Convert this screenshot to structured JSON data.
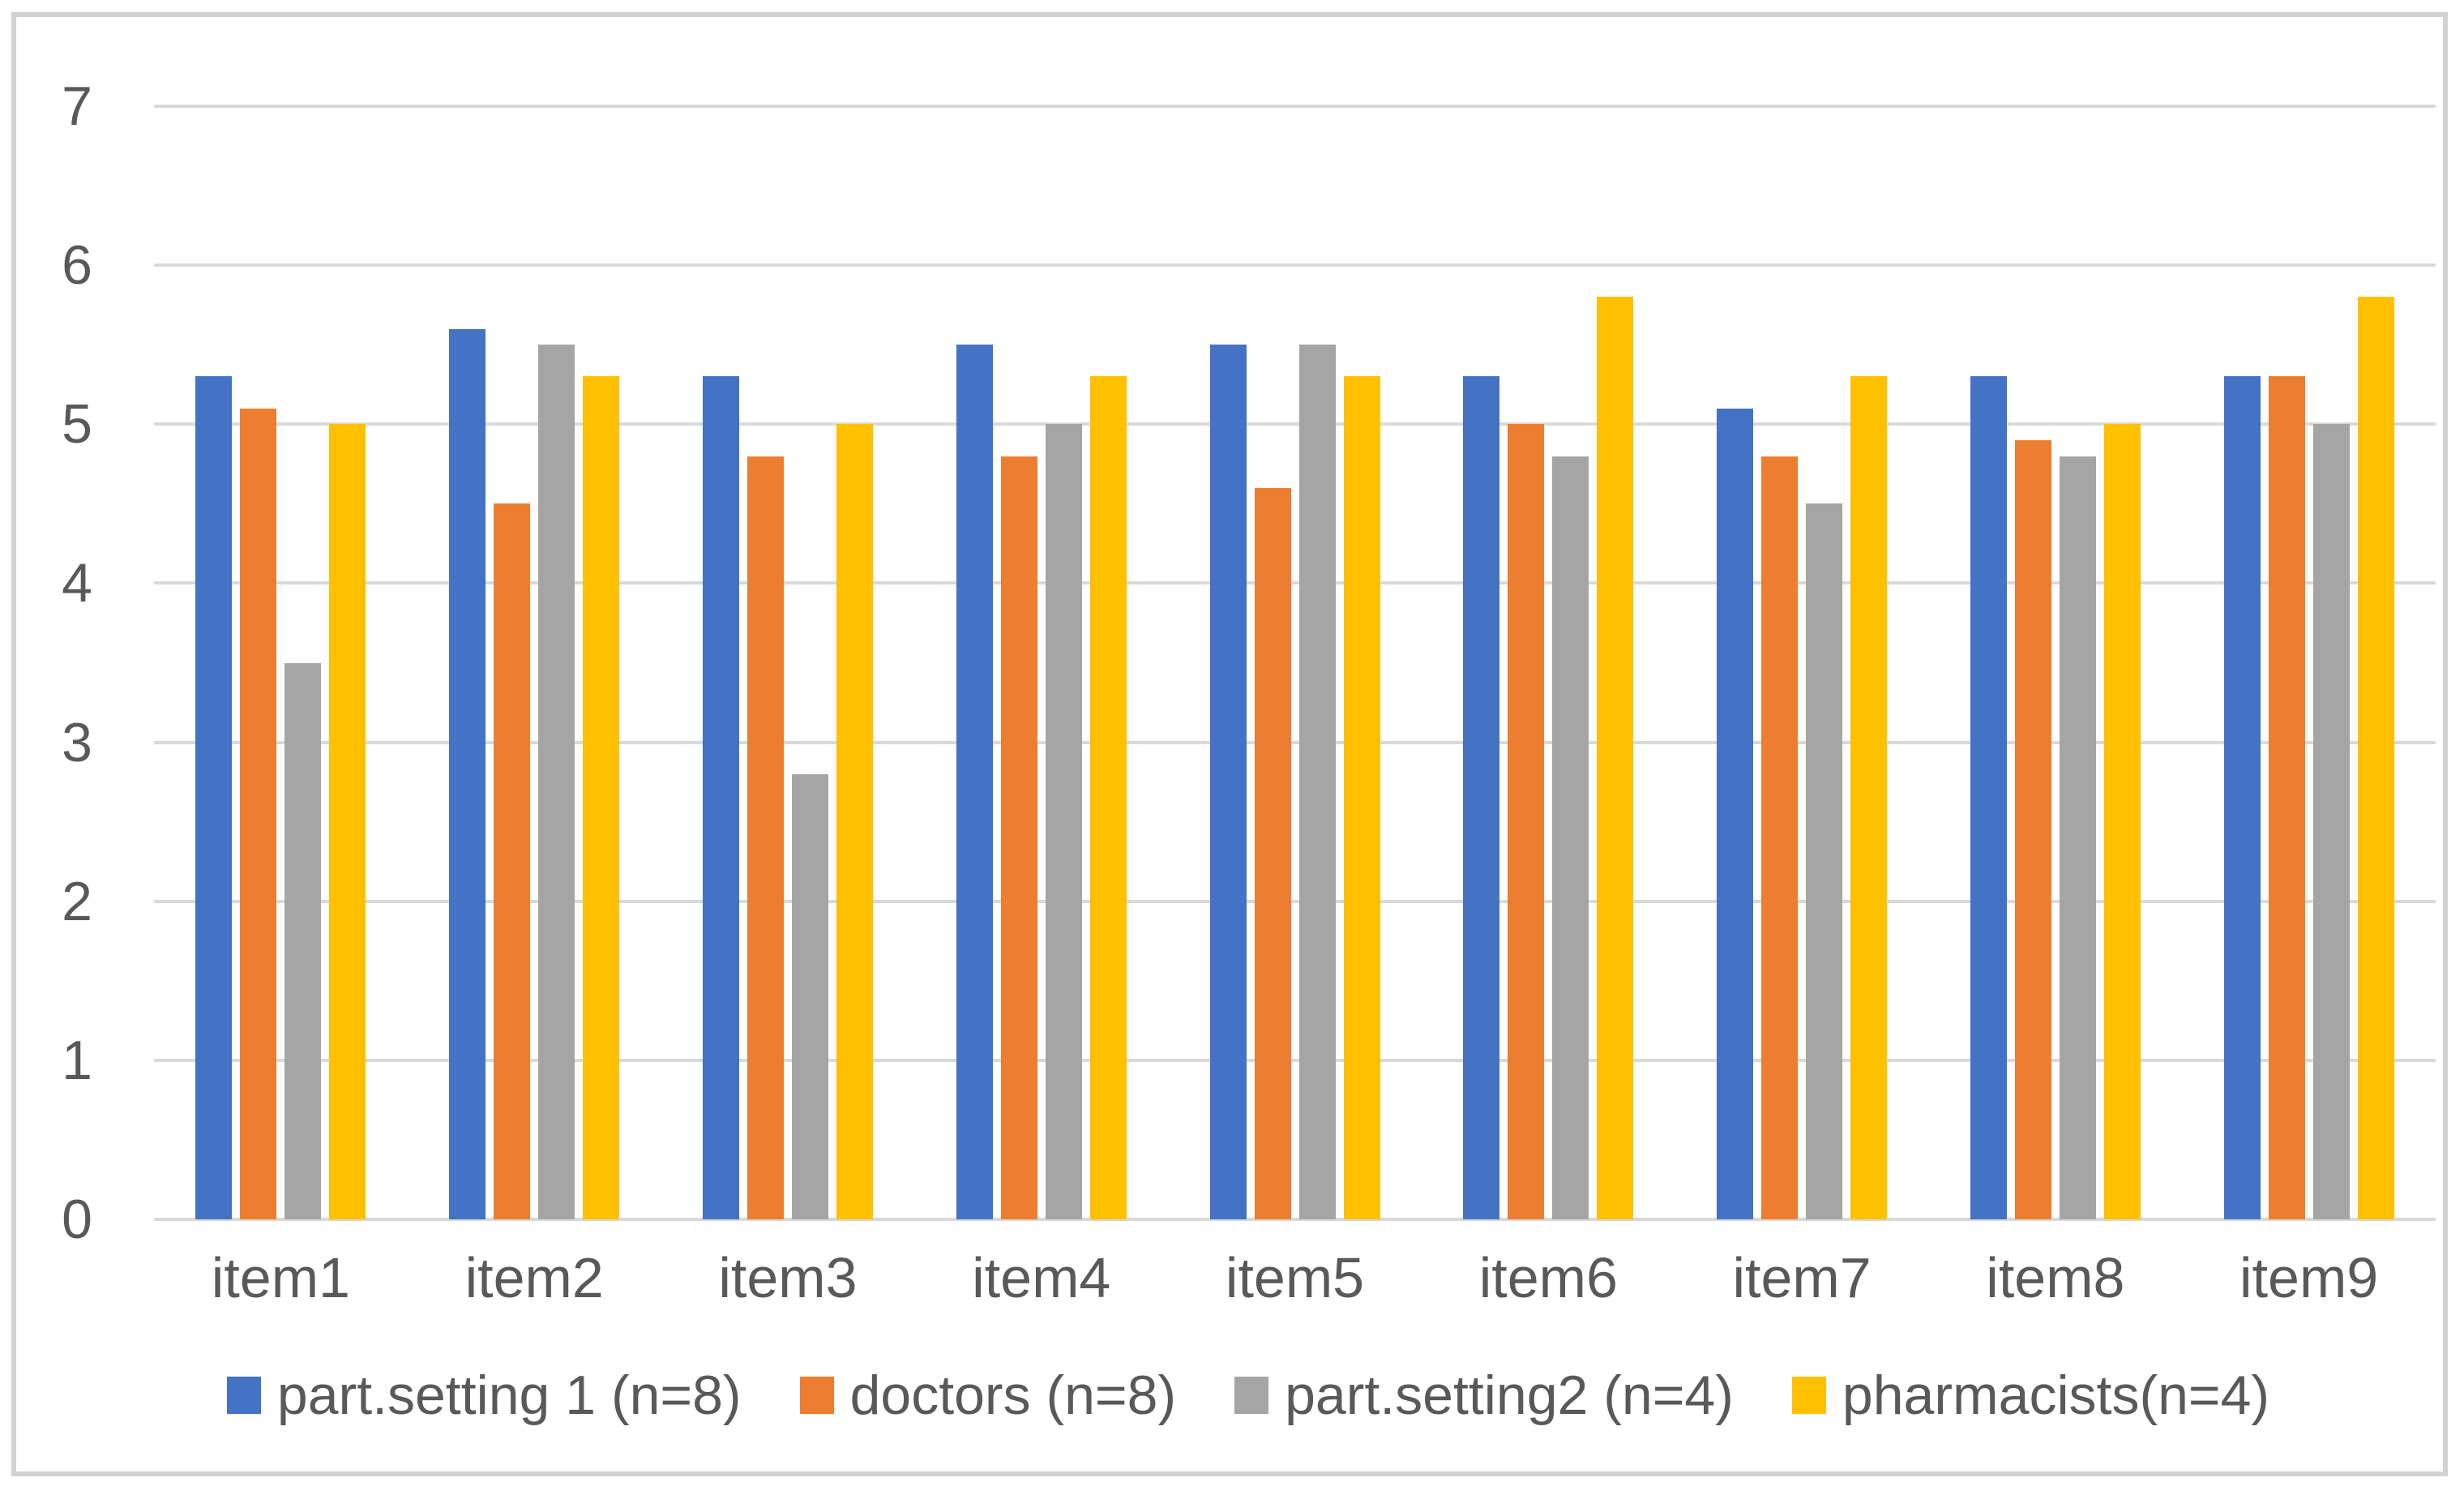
{
  "chart_data": {
    "type": "bar",
    "title": "",
    "xlabel": "",
    "ylabel": "",
    "categories": [
      "item1",
      "item2",
      "item3",
      "item4",
      "item5",
      "item6",
      "item7",
      "item8",
      "item9"
    ],
    "series": [
      {
        "name": "part.setting 1 (n=8)",
        "color": "#4472c4",
        "values": [
          5.3,
          5.6,
          5.3,
          5.5,
          5.5,
          5.3,
          5.1,
          5.3,
          5.3
        ]
      },
      {
        "name": "doctors (n=8)",
        "color": "#ed7d31",
        "values": [
          5.1,
          4.5,
          4.8,
          4.8,
          4.6,
          5.0,
          4.8,
          4.9,
          5.3
        ]
      },
      {
        "name": "part.setting2 (n=4)",
        "color": "#a5a5a5",
        "values": [
          3.5,
          5.5,
          2.8,
          5.0,
          5.5,
          4.8,
          4.5,
          4.8,
          5.0
        ]
      },
      {
        "name": "pharmacists(n=4)",
        "color": "#ffc000",
        "values": [
          5.0,
          5.3,
          5.0,
          5.3,
          5.3,
          5.8,
          5.3,
          5.0,
          5.8
        ]
      }
    ],
    "ylim": [
      0,
      7
    ],
    "yticks": [
      0,
      1,
      2,
      3,
      4,
      5,
      6,
      7
    ],
    "grid": true,
    "legend_position": "bottom"
  },
  "style_colors": {
    "gridline": "#d9d9d9",
    "axis_text": "#595959",
    "frame_border": "#d2d2d2",
    "background": "#ffffff"
  }
}
